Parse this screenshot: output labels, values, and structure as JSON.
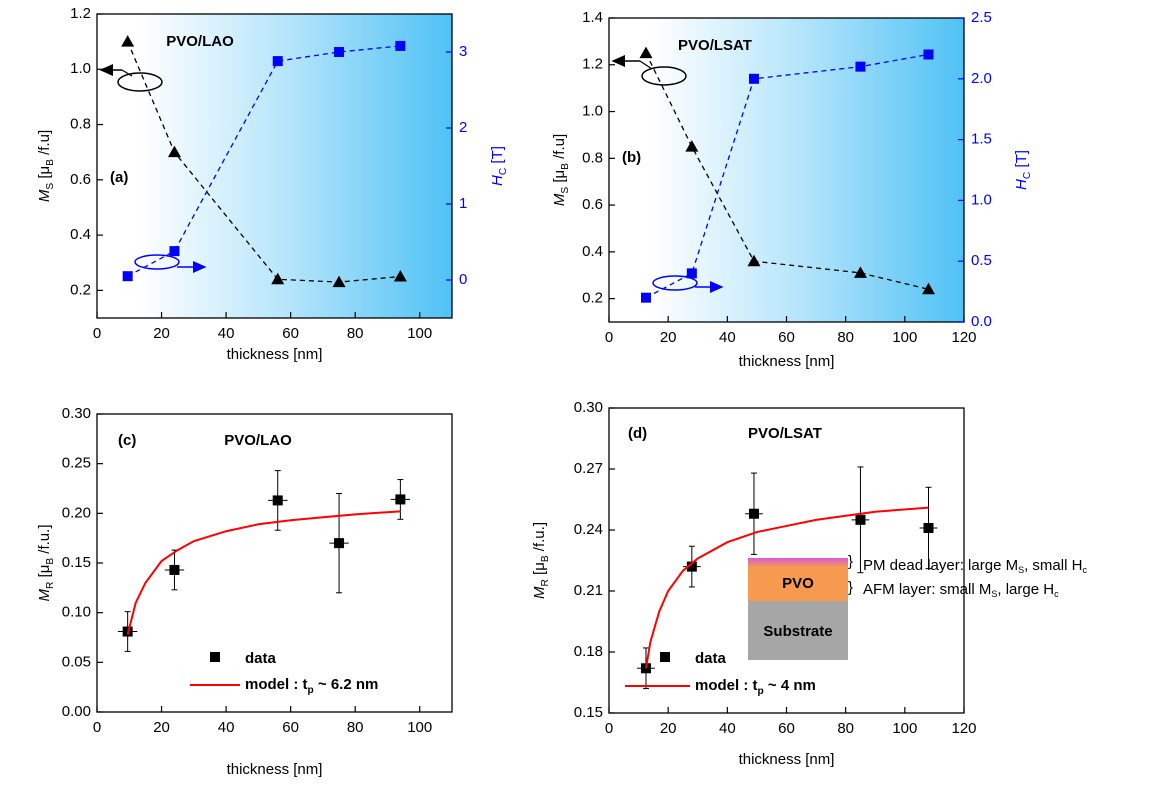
{
  "chart_data": [
    {
      "type": "line",
      "title": "PVO/LAO",
      "panel_label": "(a)",
      "xlabel": "thickness [nm]",
      "ylabel": [
        {
          "text": "M",
          "italic": true
        },
        {
          "text": "S",
          "sub": true
        },
        {
          "text": " [μ"
        },
        {
          "text": "B",
          "sub": true
        },
        {
          "text": " /f.u]"
        }
      ],
      "y2label": [
        {
          "text": "H",
          "italic": true
        },
        {
          "text": "C",
          "sub": true
        },
        {
          "text": " [T]"
        }
      ],
      "y2color": "#0000ff",
      "xlim": [
        0,
        110
      ],
      "xticks": [
        0,
        20,
        40,
        60,
        80,
        100
      ],
      "ylim": [
        0.1,
        1.2
      ],
      "yticks": [
        0.2,
        0.4,
        0.6,
        0.8,
        {
          "value": 1,
          "label": "1.0"
        },
        1.2
      ],
      "y2lim": [
        -0.5,
        3.5
      ],
      "y2ticks": [
        0,
        1,
        2,
        3
      ],
      "x": [
        9.5,
        24,
        56,
        75,
        94
      ],
      "series": [
        {
          "color": "#000000",
          "marker": "triangle",
          "values": [
            1.1,
            0.7,
            0.24,
            0.23,
            0.25
          ]
        },
        {
          "color": "#0000ff",
          "marker": "square",
          "axis": "y2",
          "values": [
            0.05,
            0.38,
            2.88,
            3.0,
            3.08
          ]
        }
      ]
    },
    {
      "type": "line",
      "title": "PVO/LSAT",
      "panel_label": "(b)",
      "xlabel": "thickness [nm]",
      "ylabel": [
        {
          "text": "M",
          "italic": true
        },
        {
          "text": "S",
          "sub": true
        },
        {
          "text": " [μ"
        },
        {
          "text": "B",
          "sub": true
        },
        {
          "text": " /f.u]"
        }
      ],
      "y2label": [
        {
          "text": "H",
          "italic": true
        },
        {
          "text": "C",
          "sub": true
        },
        {
          "text": " [T]"
        }
      ],
      "y2color": "#0000ff",
      "xlim": [
        0,
        120
      ],
      "xticks": [
        0,
        20,
        40,
        60,
        80,
        100,
        120
      ],
      "ylim": [
        0.1,
        1.4
      ],
      "yticks": [
        0.2,
        0.4,
        0.6,
        0.8,
        {
          "value": 1,
          "label": "1.0"
        },
        1.2,
        1.4
      ],
      "y2lim": [
        0,
        2.5
      ],
      "y2ticks": [
        {
          "value": 0,
          "label": "0.0"
        },
        0.5,
        {
          "value": 1,
          "label": "1.0"
        },
        1.5,
        {
          "value": 2,
          "label": "2.0"
        },
        2.5
      ],
      "x": [
        12.5,
        28,
        49,
        85,
        108
      ],
      "series": [
        {
          "color": "#000000",
          "marker": "triangle",
          "values": [
            1.25,
            0.85,
            0.36,
            0.31,
            0.24
          ]
        },
        {
          "color": "#0000ff",
          "marker": "square",
          "axis": "y2",
          "values": [
            0.2,
            0.4,
            2.0,
            2.1,
            2.2
          ]
        }
      ]
    },
    {
      "type": "scatter",
      "title": "PVO/LAO",
      "panel_label": "(c)",
      "xlabel": "thickness [nm]",
      "ylabel": [
        {
          "text": "M",
          "italic": true
        },
        {
          "text": "R",
          "sub": true
        },
        {
          "text": " [μ"
        },
        {
          "text": "B",
          "sub": true
        },
        {
          "text": " /f.u.]"
        }
      ],
      "xlim": [
        0,
        110
      ],
      "xticks": [
        0,
        20,
        40,
        60,
        80,
        100
      ],
      "ylim": [
        0,
        0.3
      ],
      "yticks": [
        {
          "value": 0,
          "label": "0.00"
        },
        0.05,
        {
          "value": 0.1,
          "label": "0.10"
        },
        0.15,
        {
          "value": 0.2,
          "label": "0.20"
        },
        0.25,
        {
          "value": 0.3,
          "label": "0.30"
        }
      ],
      "series": [
        {
          "name": [
            {
              "text": "data"
            }
          ],
          "color": "#000000",
          "marker": "square",
          "x": [
            9.5,
            24,
            56,
            75,
            94
          ],
          "values": [
            0.081,
            0.143,
            0.213,
            0.17,
            0.214
          ],
          "xerr": [
            3,
            3,
            3,
            3,
            3
          ],
          "yerr": [
            0.02,
            0.02,
            0.03,
            0.05,
            0.02
          ]
        },
        {
          "name": [
            {
              "text": "model : t"
            },
            {
              "text": "p",
              "sub": true
            },
            {
              "text": " ~ 6.2 nm"
            }
          ],
          "color": "#ff0000",
          "x": [
            9.5,
            12,
            15,
            20,
            25,
            30,
            40,
            50,
            60,
            70,
            80,
            94
          ],
          "values": [
            0.078,
            0.11,
            0.13,
            0.152,
            0.163,
            0.172,
            0.182,
            0.189,
            0.193,
            0.196,
            0.199,
            0.202
          ]
        }
      ]
    },
    {
      "type": "scatter",
      "title": "PVO/LSAT",
      "panel_label": "(d)",
      "xlabel": "thickness [nm]",
      "ylabel": [
        {
          "text": "M",
          "italic": true
        },
        {
          "text": "R",
          "sub": true
        },
        {
          "text": " [μ"
        },
        {
          "text": "B",
          "sub": true
        },
        {
          "text": " /f.u.]"
        }
      ],
      "xlim": [
        0,
        120
      ],
      "xticks": [
        0,
        20,
        40,
        60,
        80,
        100,
        120
      ],
      "ylim": [
        0.15,
        0.3
      ],
      "yticks": [
        0.15,
        0.18,
        0.21,
        0.24,
        0.27,
        {
          "value": 0.3,
          "label": "0.30"
        }
      ],
      "series": [
        {
          "name": [
            {
              "text": "data"
            }
          ],
          "color": "#000000",
          "marker": "square",
          "x": [
            12.5,
            28,
            49,
            85,
            108
          ],
          "values": [
            0.172,
            0.222,
            0.248,
            0.245,
            0.241
          ],
          "xerr": [
            3,
            3,
            3,
            3,
            3
          ],
          "yerr": [
            0.01,
            0.01,
            0.02,
            0.026,
            0.02
          ]
        },
        {
          "name": [
            {
              "text": "model : t"
            },
            {
              "text": "p",
              "sub": true
            },
            {
              "text": " ~ 4 nm"
            }
          ],
          "color": "#ff0000",
          "x": [
            12.5,
            14,
            17,
            20,
            25,
            30,
            40,
            50,
            60,
            70,
            80,
            90,
            108
          ],
          "values": [
            0.172,
            0.185,
            0.2,
            0.21,
            0.22,
            0.226,
            0.234,
            0.239,
            0.242,
            0.245,
            0.247,
            0.249,
            0.251
          ]
        }
      ],
      "inset": {
        "layers": [
          "PVO",
          "Substrate"
        ],
        "notes": [
          [
            {
              "text": "PM dead layer: large M"
            },
            {
              "text": "S",
              "sub": true
            },
            {
              "text": ", small H"
            },
            {
              "text": "c",
              "sub": true
            }
          ],
          [
            {
              "text": "AFM layer: small M"
            },
            {
              "text": "S",
              "sub": true
            },
            {
              "text": ", large H"
            },
            {
              "text": "c",
              "sub": true
            }
          ]
        ]
      }
    }
  ]
}
